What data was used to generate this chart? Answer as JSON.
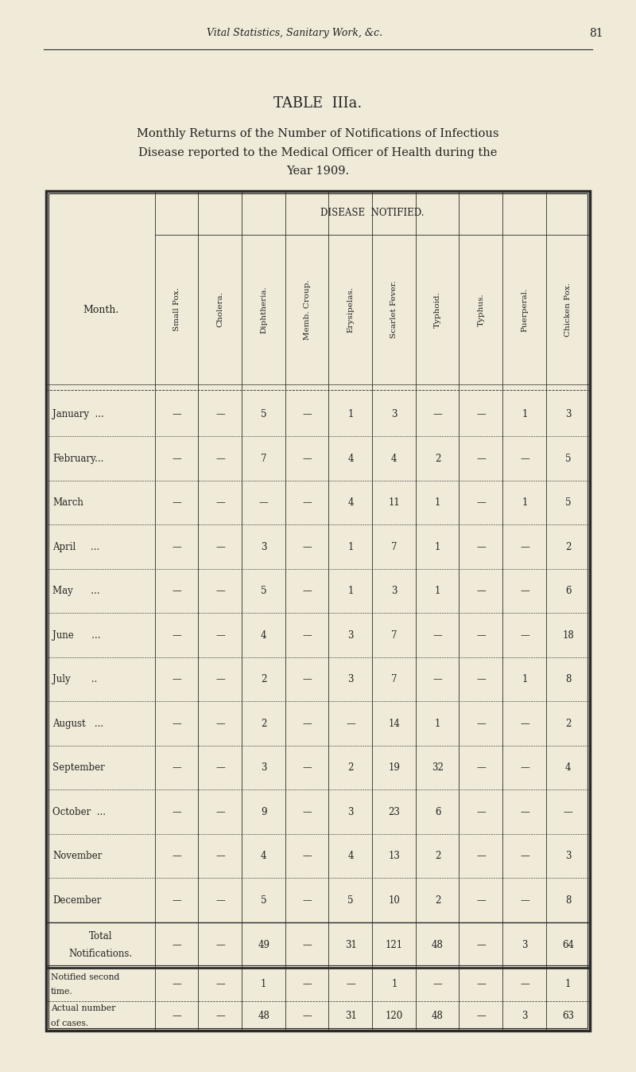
{
  "page_header_left": "Vital Statistics, Sanitary Work, &c.",
  "page_number": "81",
  "table_title": "TABLE  IIIa.",
  "table_subtitle_lines": [
    "Monthly Returns of the Number of Notifications of Infectious",
    "Disease reported to the Medical Officer of Health during the",
    "Year 1909."
  ],
  "disease_notified_header": "DISEASE  NOTIFIED.",
  "col_headers": [
    "Small Pox.",
    "Cholera.",
    "Diphtheria.",
    "Memb. Croup.",
    "Erysipelas.",
    "Scarlet Fever.",
    "Typhoid.",
    "Typhus.",
    "Puerperal.",
    "Chicken Pox."
  ],
  "row_header": "Month.",
  "months": [
    "January  ...",
    "February...",
    "March",
    "April     ...",
    "May      ...",
    "June      ...",
    "July       ..",
    "August   ...",
    "September",
    "October  ...",
    "November",
    "December"
  ],
  "data": [
    [
      "—",
      "—",
      "5",
      "—",
      "1",
      "3",
      "—",
      "—",
      "1",
      "3"
    ],
    [
      "—",
      "—",
      "7",
      "—",
      "4",
      "4",
      "2",
      "—",
      "—",
      "5"
    ],
    [
      "—",
      "—",
      "—",
      "—",
      "4",
      "11",
      "1",
      "—",
      "1",
      "5"
    ],
    [
      "—",
      "—",
      "3",
      "—",
      "1",
      "7",
      "1",
      "—",
      "—",
      "2"
    ],
    [
      "—",
      "—",
      "5",
      "—",
      "1",
      "3",
      "1",
      "—",
      "—",
      "6"
    ],
    [
      "—",
      "—",
      "4",
      "—",
      "3",
      "7",
      "—",
      "—",
      "—",
      "18"
    ],
    [
      "—",
      "—",
      "2",
      "—",
      "3",
      "7",
      "—",
      "—",
      "1",
      "8"
    ],
    [
      "—",
      "—",
      "2",
      "—",
      "—",
      "14",
      "1",
      "—",
      "—",
      "2"
    ],
    [
      "—",
      "—",
      "3",
      "—",
      "2",
      "19",
      "32",
      "—",
      "—",
      "4"
    ],
    [
      "—",
      "—",
      "9",
      "—",
      "3",
      "23",
      "6",
      "—",
      "—",
      "—"
    ],
    [
      "—",
      "—",
      "4",
      "—",
      "4",
      "13",
      "2",
      "—",
      "—",
      "3"
    ],
    [
      "—",
      "—",
      "5",
      "—",
      "5",
      "10",
      "2",
      "—",
      "—",
      "8"
    ]
  ],
  "total_row_label": [
    "Total",
    "Notifications."
  ],
  "total_row": [
    "—",
    "—",
    "49",
    "—",
    "31",
    "121",
    "48",
    "—",
    "3",
    "64"
  ],
  "notified_second_label": [
    "Notified second",
    "time."
  ],
  "notified_second_row": [
    "—",
    "—",
    "1",
    "—",
    "—",
    "1",
    "—",
    "—",
    "—",
    "1"
  ],
  "actual_label": [
    "Actual number",
    "of cases."
  ],
  "actual_row": [
    "—",
    "—",
    "48",
    "—",
    "31",
    "120",
    "48",
    "—",
    "3",
    "63"
  ],
  "bg_color": "#f0ead8",
  "text_color": "#222222",
  "line_color": "#2a2a2a"
}
